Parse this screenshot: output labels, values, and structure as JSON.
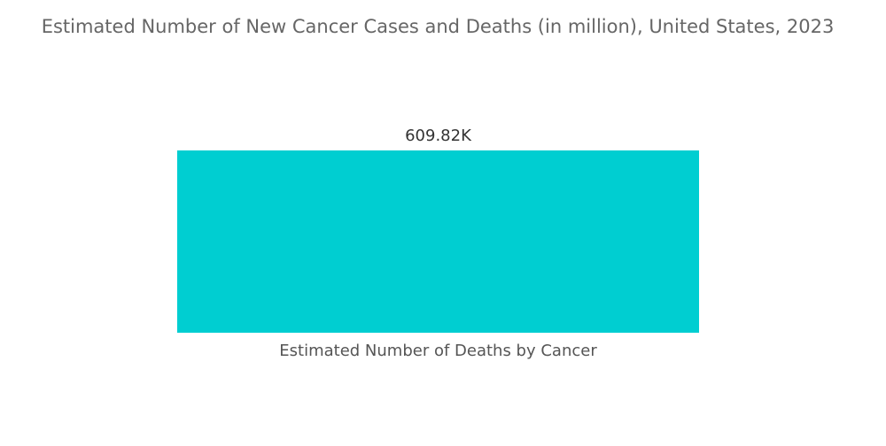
{
  "chart_data": {
    "type": "bar",
    "title": "Estimated Number of New Cancer Cases and Deaths (in million), United States, 2023",
    "categories": [
      "Estimated Number of Deaths by Cancer"
    ],
    "values": [
      609820
    ],
    "value_labels": [
      "609.82K"
    ],
    "color": "#00ced1"
  }
}
